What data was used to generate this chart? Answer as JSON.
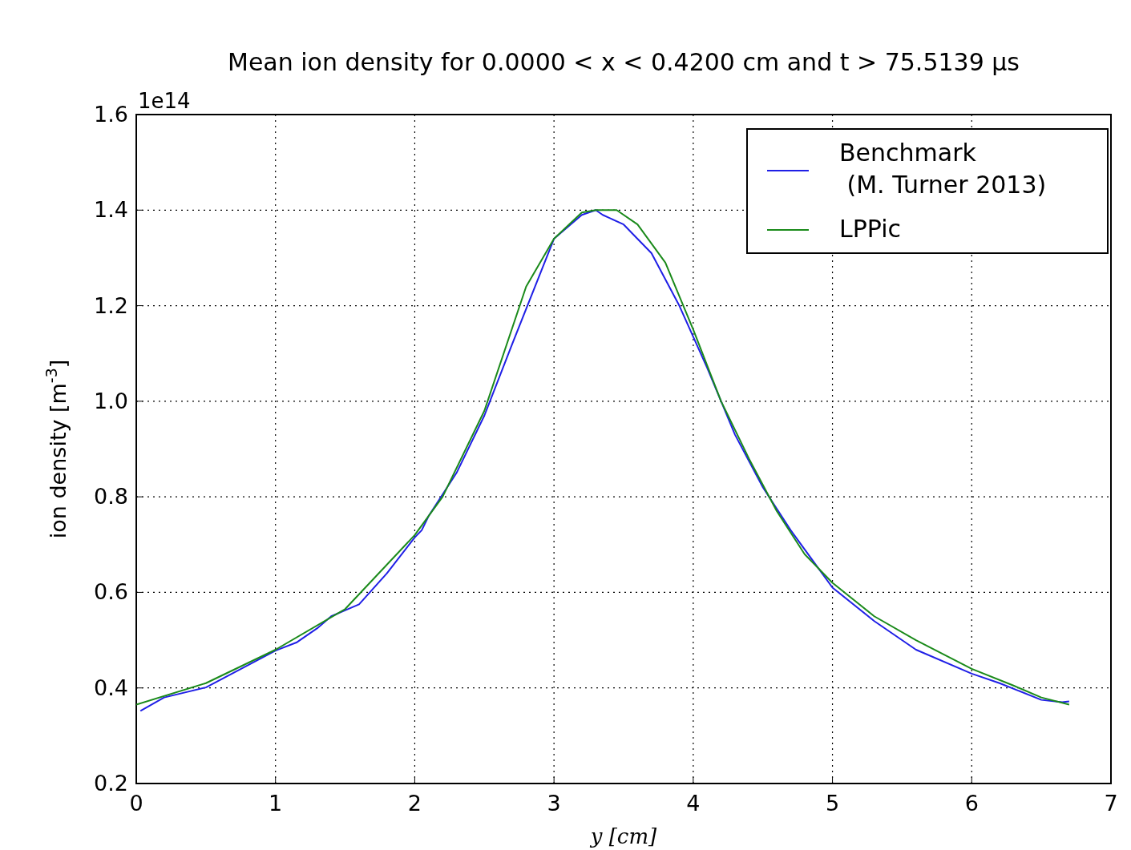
{
  "chart_data": {
    "type": "line",
    "title": "Mean ion density for 0.0000 < x < 0.4200 cm and t > 75.5139 μs",
    "xlabel": "y [cm]",
    "ylabel": "ion density [m$^{-3}$]",
    "annotations": [
      "1e14"
    ],
    "xlim": [
      0,
      7
    ],
    "xticks": [
      0,
      1,
      2,
      3,
      4,
      5,
      6,
      7
    ],
    "ylim": [
      0.2,
      1.6
    ],
    "yticks": [
      {
        "value": 0.2,
        "label": "0.2"
      },
      {
        "value": 0.4,
        "label": "0.4"
      },
      {
        "value": 0.6,
        "label": "0.6"
      },
      {
        "value": 0.8,
        "label": "0.8"
      },
      {
        "value": 1.0,
        "label": "1.0"
      },
      {
        "value": 1.2,
        "label": "1.2"
      },
      {
        "value": 1.4,
        "label": "1.4"
      },
      {
        "value": 1.6,
        "label": "1.6"
      }
    ],
    "grid": true,
    "legend": "top right",
    "line_style": "solid",
    "series": [
      {
        "name": "Benchmark\n (M. Turner 2013)",
        "color": "#1f1fe6",
        "x": [
          0.03,
          0.2,
          0.5,
          1.0,
          1.15,
          1.25,
          1.3,
          1.4,
          1.6,
          1.8,
          2.0,
          2.05,
          2.1,
          2.3,
          2.5,
          2.7,
          3.0,
          3.2,
          3.3,
          3.35,
          3.5,
          3.7,
          3.9,
          4.1,
          4.3,
          4.5,
          4.7,
          5.0,
          5.3,
          5.6,
          6.0,
          6.2,
          6.5,
          6.65,
          6.7
        ],
        "values": [
          0.352,
          0.38,
          0.401,
          0.478,
          0.495,
          0.515,
          0.525,
          0.55,
          0.575,
          0.64,
          0.715,
          0.73,
          0.76,
          0.85,
          0.97,
          1.12,
          1.34,
          1.39,
          1.4,
          1.39,
          1.37,
          1.31,
          1.2,
          1.07,
          0.93,
          0.82,
          0.73,
          0.61,
          0.54,
          0.48,
          0.43,
          0.41,
          0.375,
          0.37,
          0.372
        ]
      },
      {
        "name": "LPPic",
        "color": "#1a8a1a",
        "x": [
          0,
          0.5,
          1.0,
          1.5,
          2.0,
          2.2,
          2.5,
          2.8,
          3.0,
          3.2,
          3.3,
          3.45,
          3.6,
          3.8,
          4.0,
          4.2,
          4.4,
          4.6,
          4.8,
          5.0,
          5.3,
          5.6,
          6.0,
          6.3,
          6.5,
          6.7
        ],
        "values": [
          0.365,
          0.41,
          0.48,
          0.565,
          0.72,
          0.8,
          0.98,
          1.24,
          1.34,
          1.395,
          1.4,
          1.4,
          1.37,
          1.29,
          1.15,
          1.0,
          0.88,
          0.77,
          0.68,
          0.62,
          0.55,
          0.5,
          0.44,
          0.405,
          0.38,
          0.365
        ]
      }
    ]
  }
}
